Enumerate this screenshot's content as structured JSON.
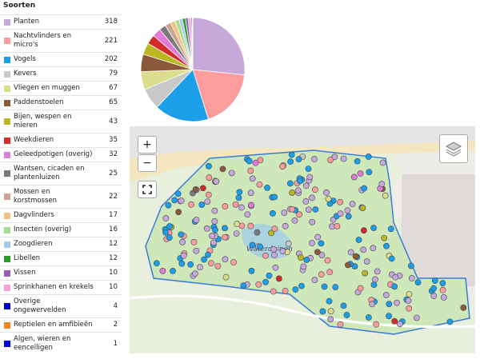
{
  "title": "Soorten",
  "chart_data": {
    "type": "pie",
    "categories": [
      "Planten",
      "Nachtvlinders en micro's",
      "Vogels",
      "Kevers",
      "Vliegen en muggen",
      "Paddenstoelen",
      "Bijen, wespen en mieren",
      "Weekdieren",
      "Geleedpotigen (overig)",
      "Wantsen, cicaden en plantenluizen",
      "Mossen en korstmossen",
      "Dagvlinders",
      "Insecten (overig)",
      "Zoogdieren",
      "Libellen",
      "Vissen",
      "Sprinkhanen en krekels",
      "Overige ongewervelden",
      "Reptielen en amfibieën",
      "Algen, wieren en eencelligen"
    ],
    "values": [
      318,
      221,
      202,
      79,
      67,
      65,
      43,
      35,
      32,
      25,
      22,
      17,
      16,
      12,
      12,
      10,
      10,
      4,
      2,
      1
    ],
    "colors": [
      "#c6a9d9",
      "#fc9d9d",
      "#1a9fe8",
      "#c9c9c9",
      "#dcdc8c",
      "#8c5a3a",
      "#b9b822",
      "#d32a2a",
      "#e17ad8",
      "#7a7a7a",
      "#c9a592",
      "#f3c27f",
      "#a6dc94",
      "#a8c8ea",
      "#2c9a2c",
      "#9561b3",
      "#f4a3d3",
      "#0000cc",
      "#f28522",
      "#0000dd"
    ]
  },
  "map": {
    "place_label": "Waterduinen",
    "zoom_in": "+",
    "zoom_out": "−"
  }
}
